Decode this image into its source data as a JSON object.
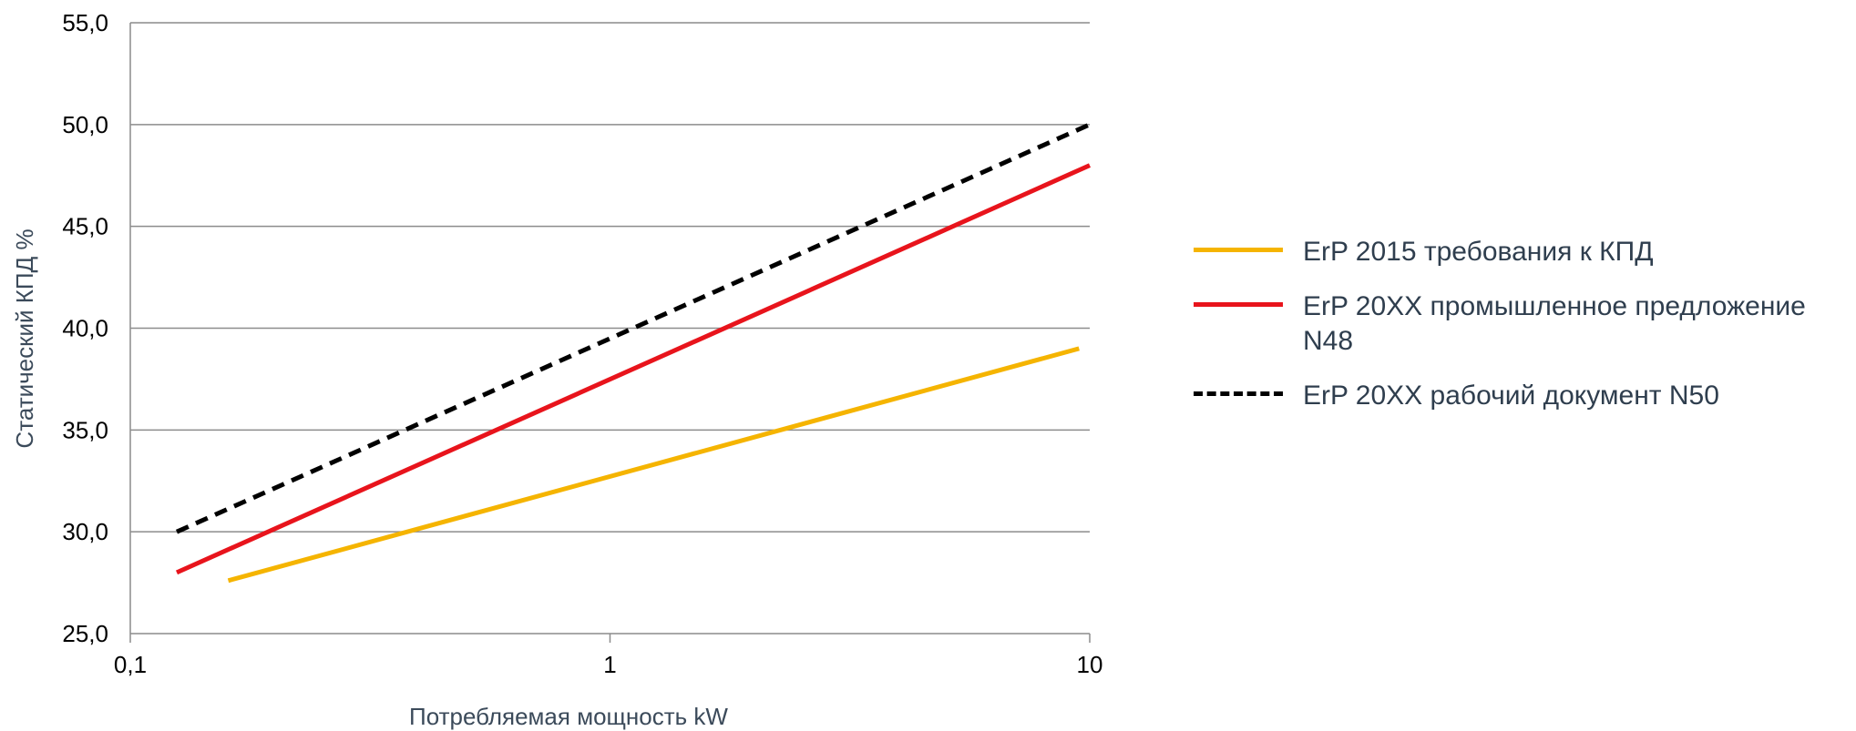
{
  "chart_data": {
    "type": "line",
    "xlabel": "Потребляемая мощность kW",
    "ylabel": "Статический КПД %",
    "x_scale": "log",
    "xlim": [
      0.1,
      10
    ],
    "ylim": [
      25.0,
      55.0
    ],
    "x_ticks": [
      0.1,
      1,
      10
    ],
    "x_tick_labels": [
      "0,1",
      "1",
      "10"
    ],
    "y_ticks": [
      25,
      30,
      35,
      40,
      45,
      50,
      55
    ],
    "y_tick_labels": [
      "25,0",
      "30,0",
      "35,0",
      "40,0",
      "45,0",
      "50,0",
      "55,0"
    ],
    "grid": "horizontal",
    "legend_position": "right",
    "series": [
      {
        "name": "ErP 2015 требования к КПД",
        "color": "#f5b400",
        "style": "solid",
        "x": [
          0.16,
          9.5
        ],
        "y": [
          27.6,
          39.0
        ]
      },
      {
        "name": "ErP 20XX промышленное предложение N48",
        "color": "#e8141c",
        "style": "solid",
        "x": [
          0.125,
          10
        ],
        "y": [
          28.0,
          48.0
        ]
      },
      {
        "name": "ErP 20XX рабочий документ N50",
        "color": "#000000",
        "style": "dashed",
        "x": [
          0.125,
          10
        ],
        "y": [
          30.0,
          50.0
        ]
      }
    ]
  }
}
